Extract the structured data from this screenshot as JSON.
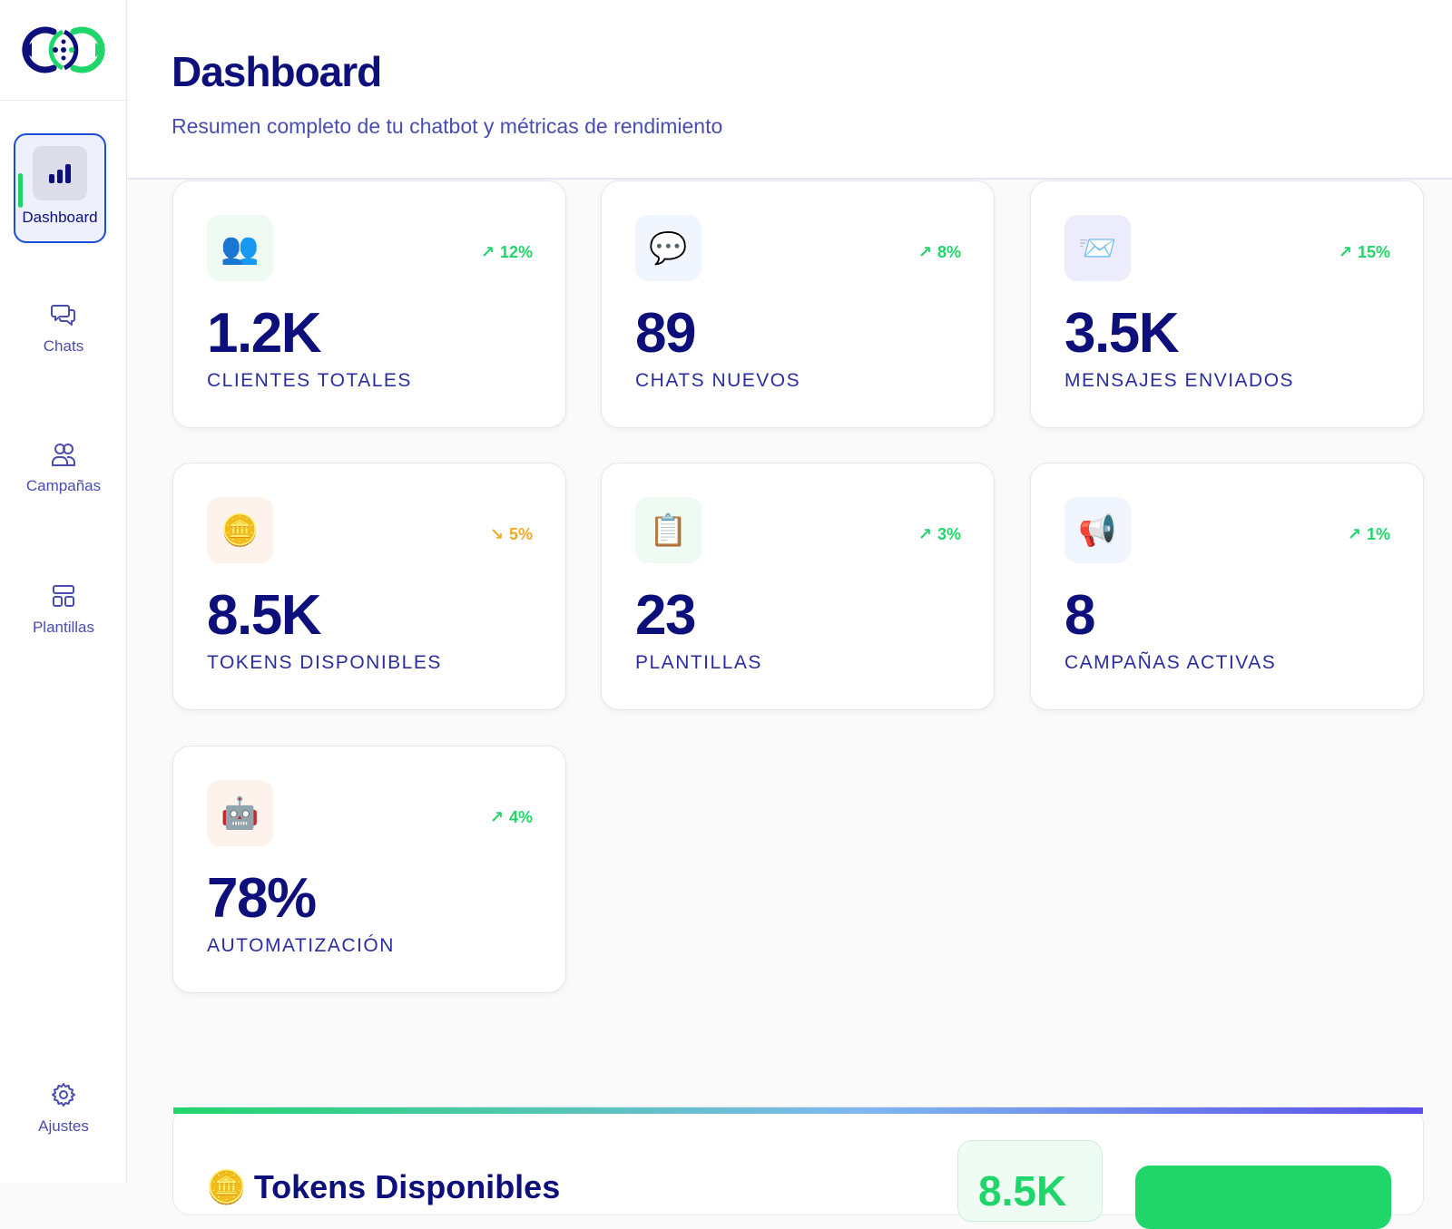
{
  "header": {
    "title": "Dashboard",
    "subtitle": "Resumen completo de tu chatbot y métricas de rendimiento"
  },
  "sidebar": {
    "items": [
      {
        "label": "Dashboard",
        "icon": "bar-chart-icon",
        "active": true
      },
      {
        "label": "Chats",
        "icon": "chat-bubbles-icon"
      },
      {
        "label": "Campañas",
        "icon": "users-icon"
      },
      {
        "label": "Plantillas",
        "icon": "layout-template-icon"
      }
    ],
    "settings": {
      "label": "Ajustes",
      "icon": "gear-icon"
    }
  },
  "cards": [
    {
      "value": "1.2K",
      "label": "CLIENTES TOTALES",
      "trend": "12%",
      "direction": "up",
      "icon": "👥",
      "icon_bg": "#eefaf2"
    },
    {
      "value": "89",
      "label": "CHATS NUEVOS",
      "trend": "8%",
      "direction": "up",
      "icon": "💬",
      "icon_bg": "#f1f5fd"
    },
    {
      "value": "3.5K",
      "label": "MENSAJES ENVIADOS",
      "trend": "15%",
      "direction": "up",
      "icon": "📨",
      "icon_bg": "#ececfd"
    },
    {
      "value": "8.5K",
      "label": "TOKENS DISPONIBLES",
      "trend": "5%",
      "direction": "down",
      "icon": "🪙",
      "icon_bg": "#fdf3ec"
    },
    {
      "value": "23",
      "label": "PLANTILLAS",
      "trend": "3%",
      "direction": "up",
      "icon": "📋",
      "icon_bg": "#eefaf2"
    },
    {
      "value": "8",
      "label": "CAMPAÑAS ACTIVAS",
      "trend": "1%",
      "direction": "up",
      "icon": "📢",
      "icon_bg": "#f1f5fd"
    },
    {
      "value": "78%",
      "label": "AUTOMATIZACIÓN",
      "trend": "4%",
      "direction": "up",
      "icon": "🤖",
      "icon_bg": "#fdf3ec"
    }
  ],
  "tokens_panel": {
    "title": "Tokens Disponibles",
    "icon": "🪙",
    "value": "8.5K"
  },
  "colors": {
    "primary": "#0d0f7a",
    "secondary": "#4a4db0",
    "accent_green": "#20d66b",
    "trend_up": "#20d66b",
    "trend_down": "#f0a92a",
    "active_border": "#1a4fd6"
  }
}
